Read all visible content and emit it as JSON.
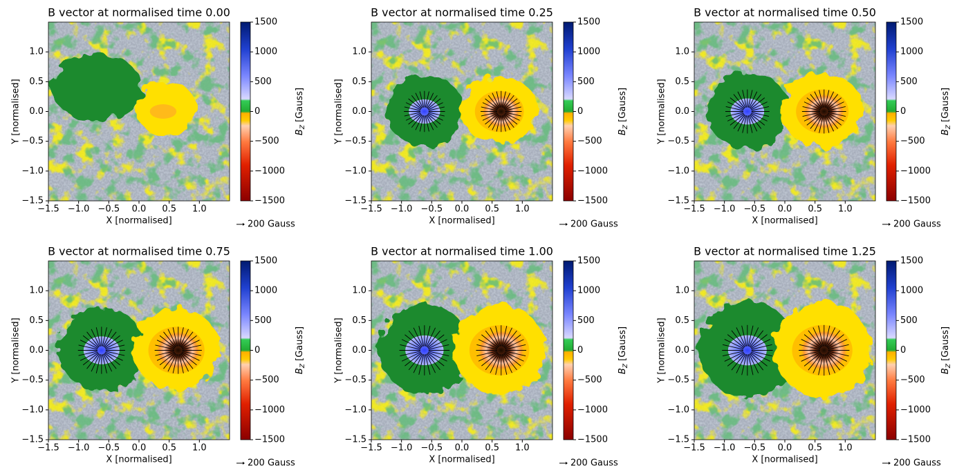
{
  "chart_data": [
    {
      "type": "heatmap",
      "title": "B vector at normalised time 0.00",
      "xlabel": "X [normalised]",
      "ylabel": "Y [normalised]",
      "xlim": [
        -1.5,
        1.5
      ],
      "ylim": [
        -1.5,
        1.5
      ],
      "xticks": [
        {
          "value": -1.5,
          "label": "−1.5"
        },
        {
          "value": -1,
          "label": "−1.0"
        },
        {
          "value": -0.5,
          "label": "−0.5"
        },
        {
          "value": 0,
          "label": "0.0"
        },
        {
          "value": 0.5,
          "label": "0.5"
        },
        {
          "value": 1,
          "label": "1.0"
        }
      ],
      "yticks": [
        {
          "value": -1.5,
          "label": "−1.5"
        },
        {
          "value": -1,
          "label": "−1.0"
        },
        {
          "value": -0.5,
          "label": "−0.5"
        },
        {
          "value": 0,
          "label": "0.0"
        },
        {
          "value": 0.5,
          "label": "0.5"
        },
        {
          "value": 1,
          "label": "1.0"
        }
      ],
      "clim": [
        -1500,
        1500
      ],
      "cticks": [
        {
          "value": -1500,
          "label": "−1500"
        },
        {
          "value": -1000,
          "label": "−1000"
        },
        {
          "value": -500,
          "label": "−500"
        },
        0,
        500,
        1000,
        1500
      ],
      "colorbar_label": {
        "symbol": "B",
        "subscript": "Z",
        "unit": "[Gauss]"
      },
      "key": {
        "value": 200,
        "label": "200 Gauss"
      }
    },
    {
      "type": "heatmap",
      "title": "B vector at normalised time 0.25",
      "xlabel": "X [normalised]",
      "ylabel": "Y [normalised]",
      "xlim": [
        -1.5,
        1.5
      ],
      "ylim": [
        -1.5,
        1.5
      ],
      "xticks": [
        {
          "value": -1.5,
          "label": "−1.5"
        },
        {
          "value": -1,
          "label": "−1.0"
        },
        {
          "value": -0.5,
          "label": "−0.5"
        },
        {
          "value": 0,
          "label": "0.0"
        },
        {
          "value": 0.5,
          "label": "0.5"
        },
        {
          "value": 1,
          "label": "1.0"
        }
      ],
      "yticks": [
        {
          "value": -1.5,
          "label": "−1.5"
        },
        {
          "value": -1,
          "label": "−1.0"
        },
        {
          "value": -0.5,
          "label": "−0.5"
        },
        {
          "value": 0,
          "label": "0.0"
        },
        {
          "value": 0.5,
          "label": "0.5"
        },
        {
          "value": 1,
          "label": "1.0"
        }
      ],
      "clim": [
        -1500,
        1500
      ],
      "cticks": [
        {
          "value": -1500,
          "label": "−1500"
        },
        {
          "value": -1000,
          "label": "−1000"
        },
        {
          "value": -500,
          "label": "−500"
        },
        0,
        500,
        1000,
        1500
      ],
      "colorbar_label": {
        "symbol": "B",
        "subscript": "Z",
        "unit": "[Gauss]"
      },
      "key": {
        "value": 200,
        "label": "200 Gauss"
      }
    },
    {
      "type": "heatmap",
      "title": "B vector at normalised time 0.50",
      "xlabel": "X [normalised]",
      "ylabel": "Y [normalised]",
      "xlim": [
        -1.5,
        1.5
      ],
      "ylim": [
        -1.5,
        1.5
      ],
      "xticks": [
        {
          "value": -1.5,
          "label": "−1.5"
        },
        {
          "value": -1,
          "label": "−1.0"
        },
        {
          "value": -0.5,
          "label": "−0.5"
        },
        {
          "value": 0,
          "label": "0.0"
        },
        {
          "value": 0.5,
          "label": "0.5"
        },
        {
          "value": 1,
          "label": "1.0"
        }
      ],
      "yticks": [
        {
          "value": -1.5,
          "label": "−1.5"
        },
        {
          "value": -1,
          "label": "−1.0"
        },
        {
          "value": -0.5,
          "label": "−0.5"
        },
        {
          "value": 0,
          "label": "0.0"
        },
        {
          "value": 0.5,
          "label": "0.5"
        },
        {
          "value": 1,
          "label": "1.0"
        }
      ],
      "clim": [
        -1500,
        1500
      ],
      "cticks": [
        {
          "value": -1500,
          "label": "−1500"
        },
        {
          "value": -1000,
          "label": "−1000"
        },
        {
          "value": -500,
          "label": "−500"
        },
        0,
        500,
        1000,
        1500
      ],
      "colorbar_label": {
        "symbol": "B",
        "subscript": "Z",
        "unit": "[Gauss]"
      },
      "key": {
        "value": 200,
        "label": "200 Gauss"
      }
    },
    {
      "type": "heatmap",
      "title": "B vector at normalised time 0.75",
      "xlabel": "X [normalised]",
      "ylabel": "Y [normalised]",
      "xlim": [
        -1.5,
        1.5
      ],
      "ylim": [
        -1.5,
        1.5
      ],
      "xticks": [
        {
          "value": -1.5,
          "label": "−1.5"
        },
        {
          "value": -1,
          "label": "−1.0"
        },
        {
          "value": -0.5,
          "label": "−0.5"
        },
        {
          "value": 0,
          "label": "0.0"
        },
        {
          "value": 0.5,
          "label": "0.5"
        },
        {
          "value": 1,
          "label": "1.0"
        }
      ],
      "yticks": [
        {
          "value": -1.5,
          "label": "−1.5"
        },
        {
          "value": -1,
          "label": "−1.0"
        },
        {
          "value": -0.5,
          "label": "−0.5"
        },
        {
          "value": 0,
          "label": "0.0"
        },
        {
          "value": 0.5,
          "label": "0.5"
        },
        {
          "value": 1,
          "label": "1.0"
        }
      ],
      "clim": [
        -1500,
        1500
      ],
      "cticks": [
        {
          "value": -1500,
          "label": "−1500"
        },
        {
          "value": -1000,
          "label": "−1000"
        },
        {
          "value": -500,
          "label": "−500"
        },
        0,
        500,
        1000,
        1500
      ],
      "colorbar_label": {
        "symbol": "B",
        "subscript": "Z",
        "unit": "[Gauss]"
      },
      "key": {
        "value": 200,
        "label": "200 Gauss"
      }
    },
    {
      "type": "heatmap",
      "title": "B vector at normalised time 1.00",
      "xlabel": "X [normalised]",
      "ylabel": "Y [normalised]",
      "xlim": [
        -1.5,
        1.5
      ],
      "ylim": [
        -1.5,
        1.5
      ],
      "xticks": [
        {
          "value": -1.5,
          "label": "−1.5"
        },
        {
          "value": -1,
          "label": "−1.0"
        },
        {
          "value": -0.5,
          "label": "−0.5"
        },
        {
          "value": 0,
          "label": "0.0"
        },
        {
          "value": 0.5,
          "label": "0.5"
        },
        {
          "value": 1,
          "label": "1.0"
        }
      ],
      "yticks": [
        {
          "value": -1.5,
          "label": "−1.5"
        },
        {
          "value": -1,
          "label": "−1.0"
        },
        {
          "value": -0.5,
          "label": "−0.5"
        },
        {
          "value": 0,
          "label": "0.0"
        },
        {
          "value": 0.5,
          "label": "0.5"
        },
        {
          "value": 1,
          "label": "1.0"
        }
      ],
      "clim": [
        -1500,
        1500
      ],
      "cticks": [
        {
          "value": -1500,
          "label": "−1500"
        },
        {
          "value": -1000,
          "label": "−1000"
        },
        {
          "value": -500,
          "label": "−500"
        },
        0,
        500,
        1000,
        1500
      ],
      "colorbar_label": {
        "symbol": "B",
        "subscript": "Z",
        "unit": "[Gauss]"
      },
      "key": {
        "value": 200,
        "label": "200 Gauss"
      }
    },
    {
      "type": "heatmap",
      "title": "B vector at normalised time 1.25",
      "xlabel": "X [normalised]",
      "ylabel": "Y [normalised]",
      "xlim": [
        -1.5,
        1.5
      ],
      "ylim": [
        -1.5,
        1.5
      ],
      "xticks": [
        {
          "value": -1.5,
          "label": "−1.5"
        },
        {
          "value": -1,
          "label": "−1.0"
        },
        {
          "value": -0.5,
          "label": "−0.5"
        },
        {
          "value": 0,
          "label": "0.0"
        },
        {
          "value": 0.5,
          "label": "0.5"
        },
        {
          "value": 1,
          "label": "1.0"
        }
      ],
      "yticks": [
        {
          "value": -1.5,
          "label": "−1.5"
        },
        {
          "value": -1,
          "label": "−1.0"
        },
        {
          "value": -0.5,
          "label": "−0.5"
        },
        {
          "value": 0,
          "label": "0.0"
        },
        {
          "value": 0.5,
          "label": "0.5"
        },
        {
          "value": 1,
          "label": "1.0"
        }
      ],
      "clim": [
        -1500,
        1500
      ],
      "cticks": [
        {
          "value": -1500,
          "label": "−1500"
        },
        {
          "value": -1000,
          "label": "−1000"
        },
        {
          "value": -500,
          "label": "−500"
        },
        0,
        500,
        1000,
        1500
      ],
      "colorbar_label": {
        "symbol": "B",
        "subscript": "Z",
        "unit": "[Gauss]"
      },
      "key": {
        "value": 200,
        "label": "200 Gauss"
      }
    }
  ]
}
